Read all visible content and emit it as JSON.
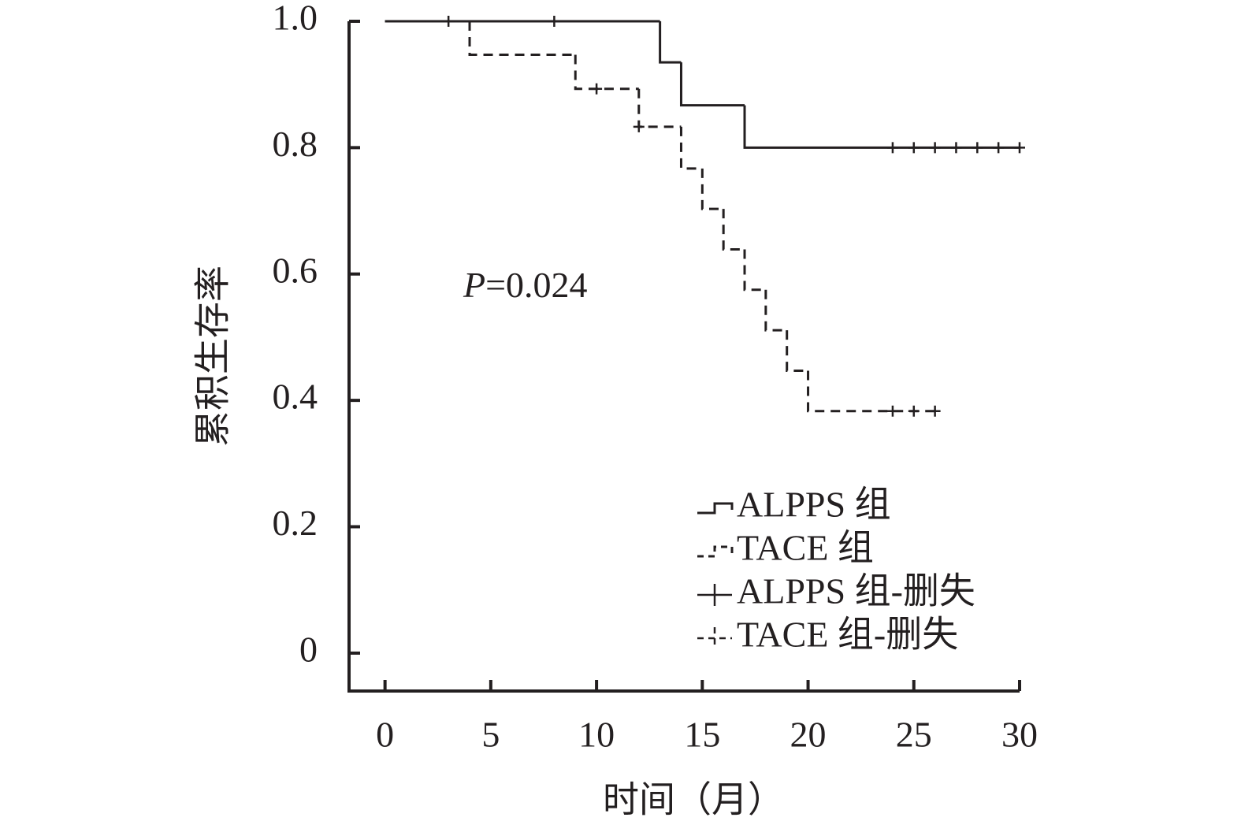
{
  "chart_data": {
    "type": "survival",
    "x_label": "时间（月）",
    "y_label": "累积生存率",
    "annotation": "P=0.024",
    "xlim": [
      -1.7,
      30
    ],
    "ylim": [
      -0.06,
      1.0
    ],
    "xticks": [
      0,
      5,
      10,
      15,
      20,
      25,
      30
    ],
    "yticks": [
      0,
      0.2,
      0.4,
      0.6,
      0.8,
      {
        "value": 1,
        "label": "1.0"
      }
    ],
    "color": "#231f20",
    "series": [
      {
        "name": "ALPPS 组",
        "dash": false,
        "x": [
          0,
          13,
          14,
          17
        ],
        "values": [
          1,
          0.935,
          0.867,
          0.8
        ],
        "end": 30
      },
      {
        "name": "TACE 组",
        "dash": true,
        "x": [
          0,
          4,
          9,
          12,
          14,
          15,
          16,
          17,
          18,
          19,
          20
        ],
        "values": [
          1,
          0.947,
          0.893,
          0.833,
          0.767,
          0.703,
          0.639,
          0.575,
          0.511,
          0.447,
          0.383
        ],
        "end": 26
      }
    ],
    "censored": [
      {
        "name": "ALPPS 组-删失",
        "dash": false,
        "x": [
          3,
          8,
          24,
          25,
          26,
          27,
          28,
          29,
          30
        ],
        "values": [
          1,
          1,
          0.8,
          0.8,
          0.8,
          0.8,
          0.8,
          0.8,
          0.8
        ]
      },
      {
        "name": "TACE 组-删失",
        "dash": true,
        "x": [
          10,
          12,
          24,
          25,
          26
        ],
        "values": [
          0.893,
          0.833,
          0.383,
          0.383,
          0.383
        ]
      }
    ]
  }
}
